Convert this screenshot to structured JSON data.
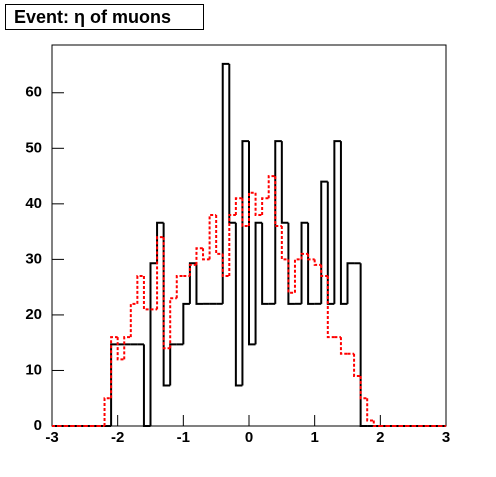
{
  "chart_data": {
    "type": "histogram",
    "title": "Event: η of muons",
    "bins": [
      -3,
      -2.9,
      -2.8,
      -2.7,
      -2.6,
      -2.5,
      -2.4,
      -2.3,
      -2.2,
      -2.1,
      -2,
      -1.9,
      -1.8,
      -1.7,
      -1.6,
      -1.5,
      -1.4,
      -1.3,
      -1.2,
      -1.1,
      -1,
      -0.9,
      -0.8,
      -0.7,
      -0.6,
      -0.5,
      -0.4,
      -0.3,
      -0.2,
      -0.1,
      0,
      0.1,
      0.2,
      0.3,
      0.4,
      0.5,
      0.6,
      0.7,
      0.8,
      0.9,
      1,
      1.1,
      1.2,
      1.3,
      1.4,
      1.5,
      1.6,
      1.7,
      1.8,
      1.9,
      2,
      2.1,
      2.2,
      2.3,
      2.4,
      2.5,
      2.6,
      2.7,
      2.8,
      2.9,
      3
    ],
    "series": [
      {
        "color": "#000000",
        "dashed": false,
        "values": [
          0,
          0,
          0,
          0,
          0,
          0,
          0,
          0,
          0,
          14.7,
          14.7,
          14.7,
          14.7,
          14.7,
          0,
          29.3,
          36.6,
          7.3,
          14.7,
          14.7,
          22,
          29.3,
          22,
          22,
          22,
          22,
          65.2,
          36.6,
          7.3,
          51.3,
          14.7,
          36.6,
          22,
          22,
          51.3,
          36.6,
          22,
          22,
          36.6,
          22,
          22,
          44,
          22,
          51.3,
          22,
          29.3,
          29.3,
          0,
          0,
          0,
          0,
          0,
          0,
          0,
          0,
          0,
          0,
          0,
          0,
          0
        ]
      },
      {
        "color": "#ff0000",
        "dashed": true,
        "values": [
          0,
          0,
          0,
          0,
          0,
          0,
          0,
          0,
          5,
          16,
          12,
          16,
          22,
          27,
          21,
          21,
          34,
          14,
          23,
          27,
          27,
          29,
          32,
          30,
          38,
          31,
          27,
          38,
          41,
          36,
          42,
          38,
          41,
          45,
          36,
          30,
          24,
          30,
          31,
          30,
          29,
          27,
          16,
          16,
          13,
          13,
          9,
          5,
          1,
          0,
          0,
          0,
          0,
          0,
          0,
          0,
          0,
          0,
          0,
          0
        ]
      }
    ],
    "xlim": [
      -3,
      3
    ],
    "xticks": [
      -3,
      -2,
      -1,
      0,
      1,
      2,
      3
    ],
    "ylim": [
      0,
      68.6
    ],
    "yticks": [
      0,
      10,
      20,
      30,
      40,
      50,
      60
    ]
  }
}
